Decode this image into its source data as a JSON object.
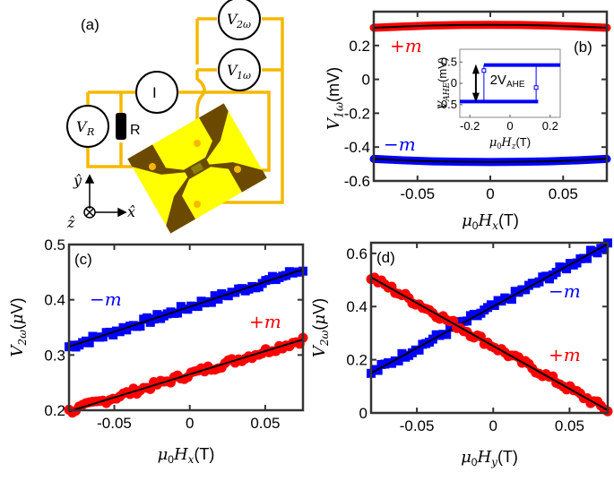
{
  "panel_a": {
    "label": "(a)",
    "meters": {
      "v2w": "V",
      "v2w_sub": "2ω",
      "v1w": "V",
      "v1w_sub": "1ω",
      "current": "I",
      "vr": "V",
      "vr_sub": "R"
    },
    "resistor_label": "R",
    "axes": {
      "y": "ŷ",
      "x": "x̂",
      "z": "ẑ"
    },
    "colors": {
      "wire": "#f5b800",
      "device": "#ffff00",
      "film": "#6b4a00"
    }
  },
  "chart_data": [
    {
      "id": "b",
      "type": "line",
      "panel_label": "(b)",
      "xlabel": "μ0Hx(T)",
      "ylabel": "V1ω(mV)",
      "xlim": [
        -0.08,
        0.08
      ],
      "ylim": [
        -0.6,
        0.4
      ],
      "xticks": [
        -0.05,
        0,
        0.05
      ],
      "xtick_labels": [
        "-0.05",
        "0",
        "0.05"
      ],
      "yticks": [
        -0.6,
        -0.4,
        -0.2,
        0,
        0.2
      ],
      "ytick_labels": [
        "-0.6",
        "-0.4",
        "-0.2",
        "0",
        "0.2"
      ],
      "series": [
        {
          "name": "+m",
          "color": "#ff0000",
          "x": [
            -0.08,
            -0.06,
            -0.04,
            -0.02,
            0,
            0.02,
            0.04,
            0.06,
            0.08
          ],
          "values": [
            0.305,
            0.312,
            0.318,
            0.321,
            0.322,
            0.321,
            0.318,
            0.312,
            0.305
          ]
        },
        {
          "name": "-m",
          "color": "#0000ff",
          "x": [
            -0.08,
            -0.06,
            -0.04,
            -0.02,
            0,
            0.02,
            0.04,
            0.06,
            0.08
          ],
          "values": [
            -0.47,
            -0.478,
            -0.484,
            -0.487,
            -0.488,
            -0.487,
            -0.484,
            -0.478,
            -0.47
          ]
        }
      ],
      "inset": {
        "type": "line",
        "xlabel": "μ0Hz(T)",
        "ylabel": "VAHE(mV)",
        "xlim": [
          -0.25,
          0.25
        ],
        "ylim": [
          -0.8,
          0.8
        ],
        "xticks": [
          -0.2,
          0,
          0.2
        ],
        "xtick_labels": [
          "-0.2",
          "0",
          "0.2"
        ],
        "yticks": [
          -0.5,
          0,
          0.5
        ],
        "ytick_labels": [
          "-0.5",
          "0",
          "0.5"
        ],
        "annotation": "2V",
        "annotation_sub": "AHE",
        "series": [
          {
            "name": "upper",
            "color": "#0000ff",
            "x": [
              -0.13,
              0.25
            ],
            "values": [
              0.43,
              0.43
            ]
          },
          {
            "name": "lower",
            "color": "#0000ff",
            "x": [
              -0.25,
              0.14
            ],
            "values": [
              -0.43,
              -0.43
            ]
          }
        ],
        "switching_fields": [
          -0.13,
          0.13
        ]
      }
    },
    {
      "id": "c",
      "type": "scatter",
      "panel_label": "(c)",
      "xlabel": "μ0Hx(T)",
      "ylabel": "V2ω(μV)",
      "xlim": [
        -0.08,
        0.075
      ],
      "ylim": [
        0.2,
        0.5
      ],
      "xticks": [
        -0.05,
        0,
        0.05
      ],
      "xtick_labels": [
        "-0.05",
        "0",
        "0.05"
      ],
      "yticks": [
        0.2,
        0.3,
        0.4,
        0.5
      ],
      "ytick_labels": [
        "0.2",
        "0.3",
        "0.4",
        "0.5"
      ],
      "series": [
        {
          "name": "-m",
          "color": "#0000ff",
          "marker": "square",
          "fit": [
            0.315,
            0.455
          ]
        },
        {
          "name": "+m",
          "color": "#ff0000",
          "marker": "circle",
          "fit": [
            0.198,
            0.328
          ]
        }
      ]
    },
    {
      "id": "d",
      "type": "scatter",
      "panel_label": "(d)",
      "xlabel": "μ0Hy(T)",
      "ylabel": "V2ω(μV)",
      "xlim": [
        -0.08,
        0.075
      ],
      "ylim": [
        0,
        0.64
      ],
      "xticks": [
        -0.05,
        0,
        0.05
      ],
      "xtick_labels": [
        "-0.05",
        "0",
        "0.05"
      ],
      "yticks": [
        0,
        0.2,
        0.4,
        0.6
      ],
      "ytick_labels": [
        "0",
        "0.2",
        "0.4",
        "0.6"
      ],
      "series": [
        {
          "name": "-m",
          "color": "#0000ff",
          "marker": "square",
          "fit": [
            0.15,
            0.635
          ]
        },
        {
          "name": "+m",
          "color": "#ff0000",
          "marker": "circle",
          "fit": [
            0.51,
            0.01
          ]
        }
      ]
    }
  ]
}
